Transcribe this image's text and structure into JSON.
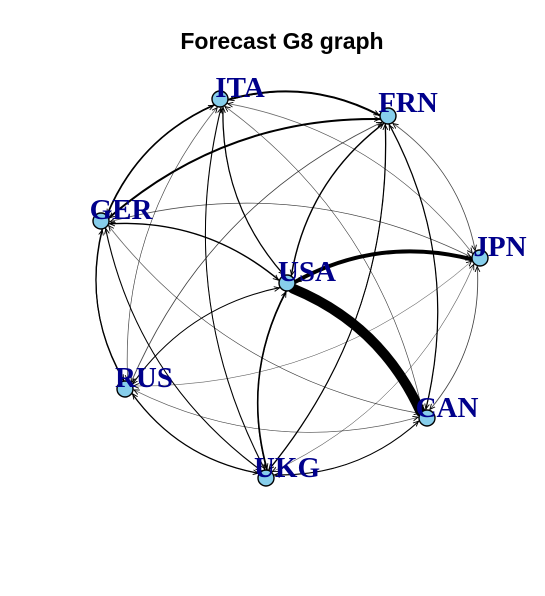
{
  "title": "Forecast G8 graph",
  "style": {
    "node_fill": "#87CEEB",
    "label_color": "#00008B",
    "edge_color": "#000000"
  },
  "nodes": [
    {
      "id": "ITA",
      "label": "ITA"
    },
    {
      "id": "FRN",
      "label": "FRN"
    },
    {
      "id": "GER",
      "label": "GER"
    },
    {
      "id": "JPN",
      "label": "JPN"
    },
    {
      "id": "USA",
      "label": "USA"
    },
    {
      "id": "RUS",
      "label": "RUS"
    },
    {
      "id": "CAN",
      "label": "CAN"
    },
    {
      "id": "UKG",
      "label": "UKG"
    }
  ],
  "edges": [
    {
      "from": "USA",
      "to": "CAN",
      "weight": 10
    },
    {
      "from": "USA",
      "to": "JPN",
      "weight": 4
    },
    {
      "from": "ITA",
      "to": "FRN",
      "weight": 2
    },
    {
      "from": "FRN",
      "to": "ITA",
      "weight": 1.2
    },
    {
      "from": "GER",
      "to": "FRN",
      "weight": 2
    },
    {
      "from": "FRN",
      "to": "GER",
      "weight": 1
    },
    {
      "from": "ITA",
      "to": "GER",
      "weight": 1.6
    },
    {
      "from": "GER",
      "to": "ITA",
      "weight": 1.2
    },
    {
      "from": "USA",
      "to": "ITA",
      "weight": 1.2
    },
    {
      "from": "ITA",
      "to": "USA",
      "weight": 0.8
    },
    {
      "from": "USA",
      "to": "FRN",
      "weight": 1.4
    },
    {
      "from": "FRN",
      "to": "USA",
      "weight": 0.8
    },
    {
      "from": "USA",
      "to": "GER",
      "weight": 1.4
    },
    {
      "from": "GER",
      "to": "USA",
      "weight": 0.6
    },
    {
      "from": "USA",
      "to": "UKG",
      "weight": 1.6
    },
    {
      "from": "UKG",
      "to": "USA",
      "weight": 1.2
    },
    {
      "from": "USA",
      "to": "RUS",
      "weight": 1
    },
    {
      "from": "RUS",
      "to": "USA",
      "weight": 0.6
    },
    {
      "from": "CAN",
      "to": "USA",
      "weight": 1
    },
    {
      "from": "JPN",
      "to": "USA",
      "weight": 0.8
    },
    {
      "from": "CAN",
      "to": "JPN",
      "weight": 0.8
    },
    {
      "from": "JPN",
      "to": "CAN",
      "weight": 0.6
    },
    {
      "from": "FRN",
      "to": "JPN",
      "weight": 0.8
    },
    {
      "from": "JPN",
      "to": "FRN",
      "weight": 0.5
    },
    {
      "from": "FRN",
      "to": "CAN",
      "weight": 1.2
    },
    {
      "from": "CAN",
      "to": "FRN",
      "weight": 0.8
    },
    {
      "from": "FRN",
      "to": "UKG",
      "weight": 1
    },
    {
      "from": "UKG",
      "to": "FRN",
      "weight": 1
    },
    {
      "from": "FRN",
      "to": "RUS",
      "weight": 0.6
    },
    {
      "from": "RUS",
      "to": "FRN",
      "weight": 0.8
    },
    {
      "from": "ITA",
      "to": "UKG",
      "weight": 0.8
    },
    {
      "from": "UKG",
      "to": "ITA",
      "weight": 1
    },
    {
      "from": "ITA",
      "to": "RUS",
      "weight": 0.6
    },
    {
      "from": "RUS",
      "to": "ITA",
      "weight": 0.5
    },
    {
      "from": "ITA",
      "to": "CAN",
      "weight": 0.6
    },
    {
      "from": "CAN",
      "to": "ITA",
      "weight": 0.5
    },
    {
      "from": "ITA",
      "to": "JPN",
      "weight": 0.6
    },
    {
      "from": "JPN",
      "to": "ITA",
      "weight": 0.4
    },
    {
      "from": "GER",
      "to": "RUS",
      "weight": 1.2
    },
    {
      "from": "RUS",
      "to": "GER",
      "weight": 1.2
    },
    {
      "from": "GER",
      "to": "UKG",
      "weight": 1
    },
    {
      "from": "UKG",
      "to": "GER",
      "weight": 0.8
    },
    {
      "from": "GER",
      "to": "JPN",
      "weight": 0.6
    },
    {
      "from": "JPN",
      "to": "GER",
      "weight": 0.6
    },
    {
      "from": "GER",
      "to": "CAN",
      "weight": 0.6
    },
    {
      "from": "CAN",
      "to": "GER",
      "weight": 0.5
    },
    {
      "from": "RUS",
      "to": "UKG",
      "weight": 1.2
    },
    {
      "from": "UKG",
      "to": "RUS",
      "weight": 0.8
    },
    {
      "from": "UKG",
      "to": "CAN",
      "weight": 0.8
    },
    {
      "from": "CAN",
      "to": "UKG",
      "weight": 1
    },
    {
      "from": "RUS",
      "to": "CAN",
      "weight": 0.5
    },
    {
      "from": "CAN",
      "to": "RUS",
      "weight": 0.5
    },
    {
      "from": "UKG",
      "to": "JPN",
      "weight": 0.5
    },
    {
      "from": "JPN",
      "to": "UKG",
      "weight": 0.4
    },
    {
      "from": "RUS",
      "to": "JPN",
      "weight": 0.4
    },
    {
      "from": "JPN",
      "to": "RUS",
      "weight": 0.4
    }
  ]
}
